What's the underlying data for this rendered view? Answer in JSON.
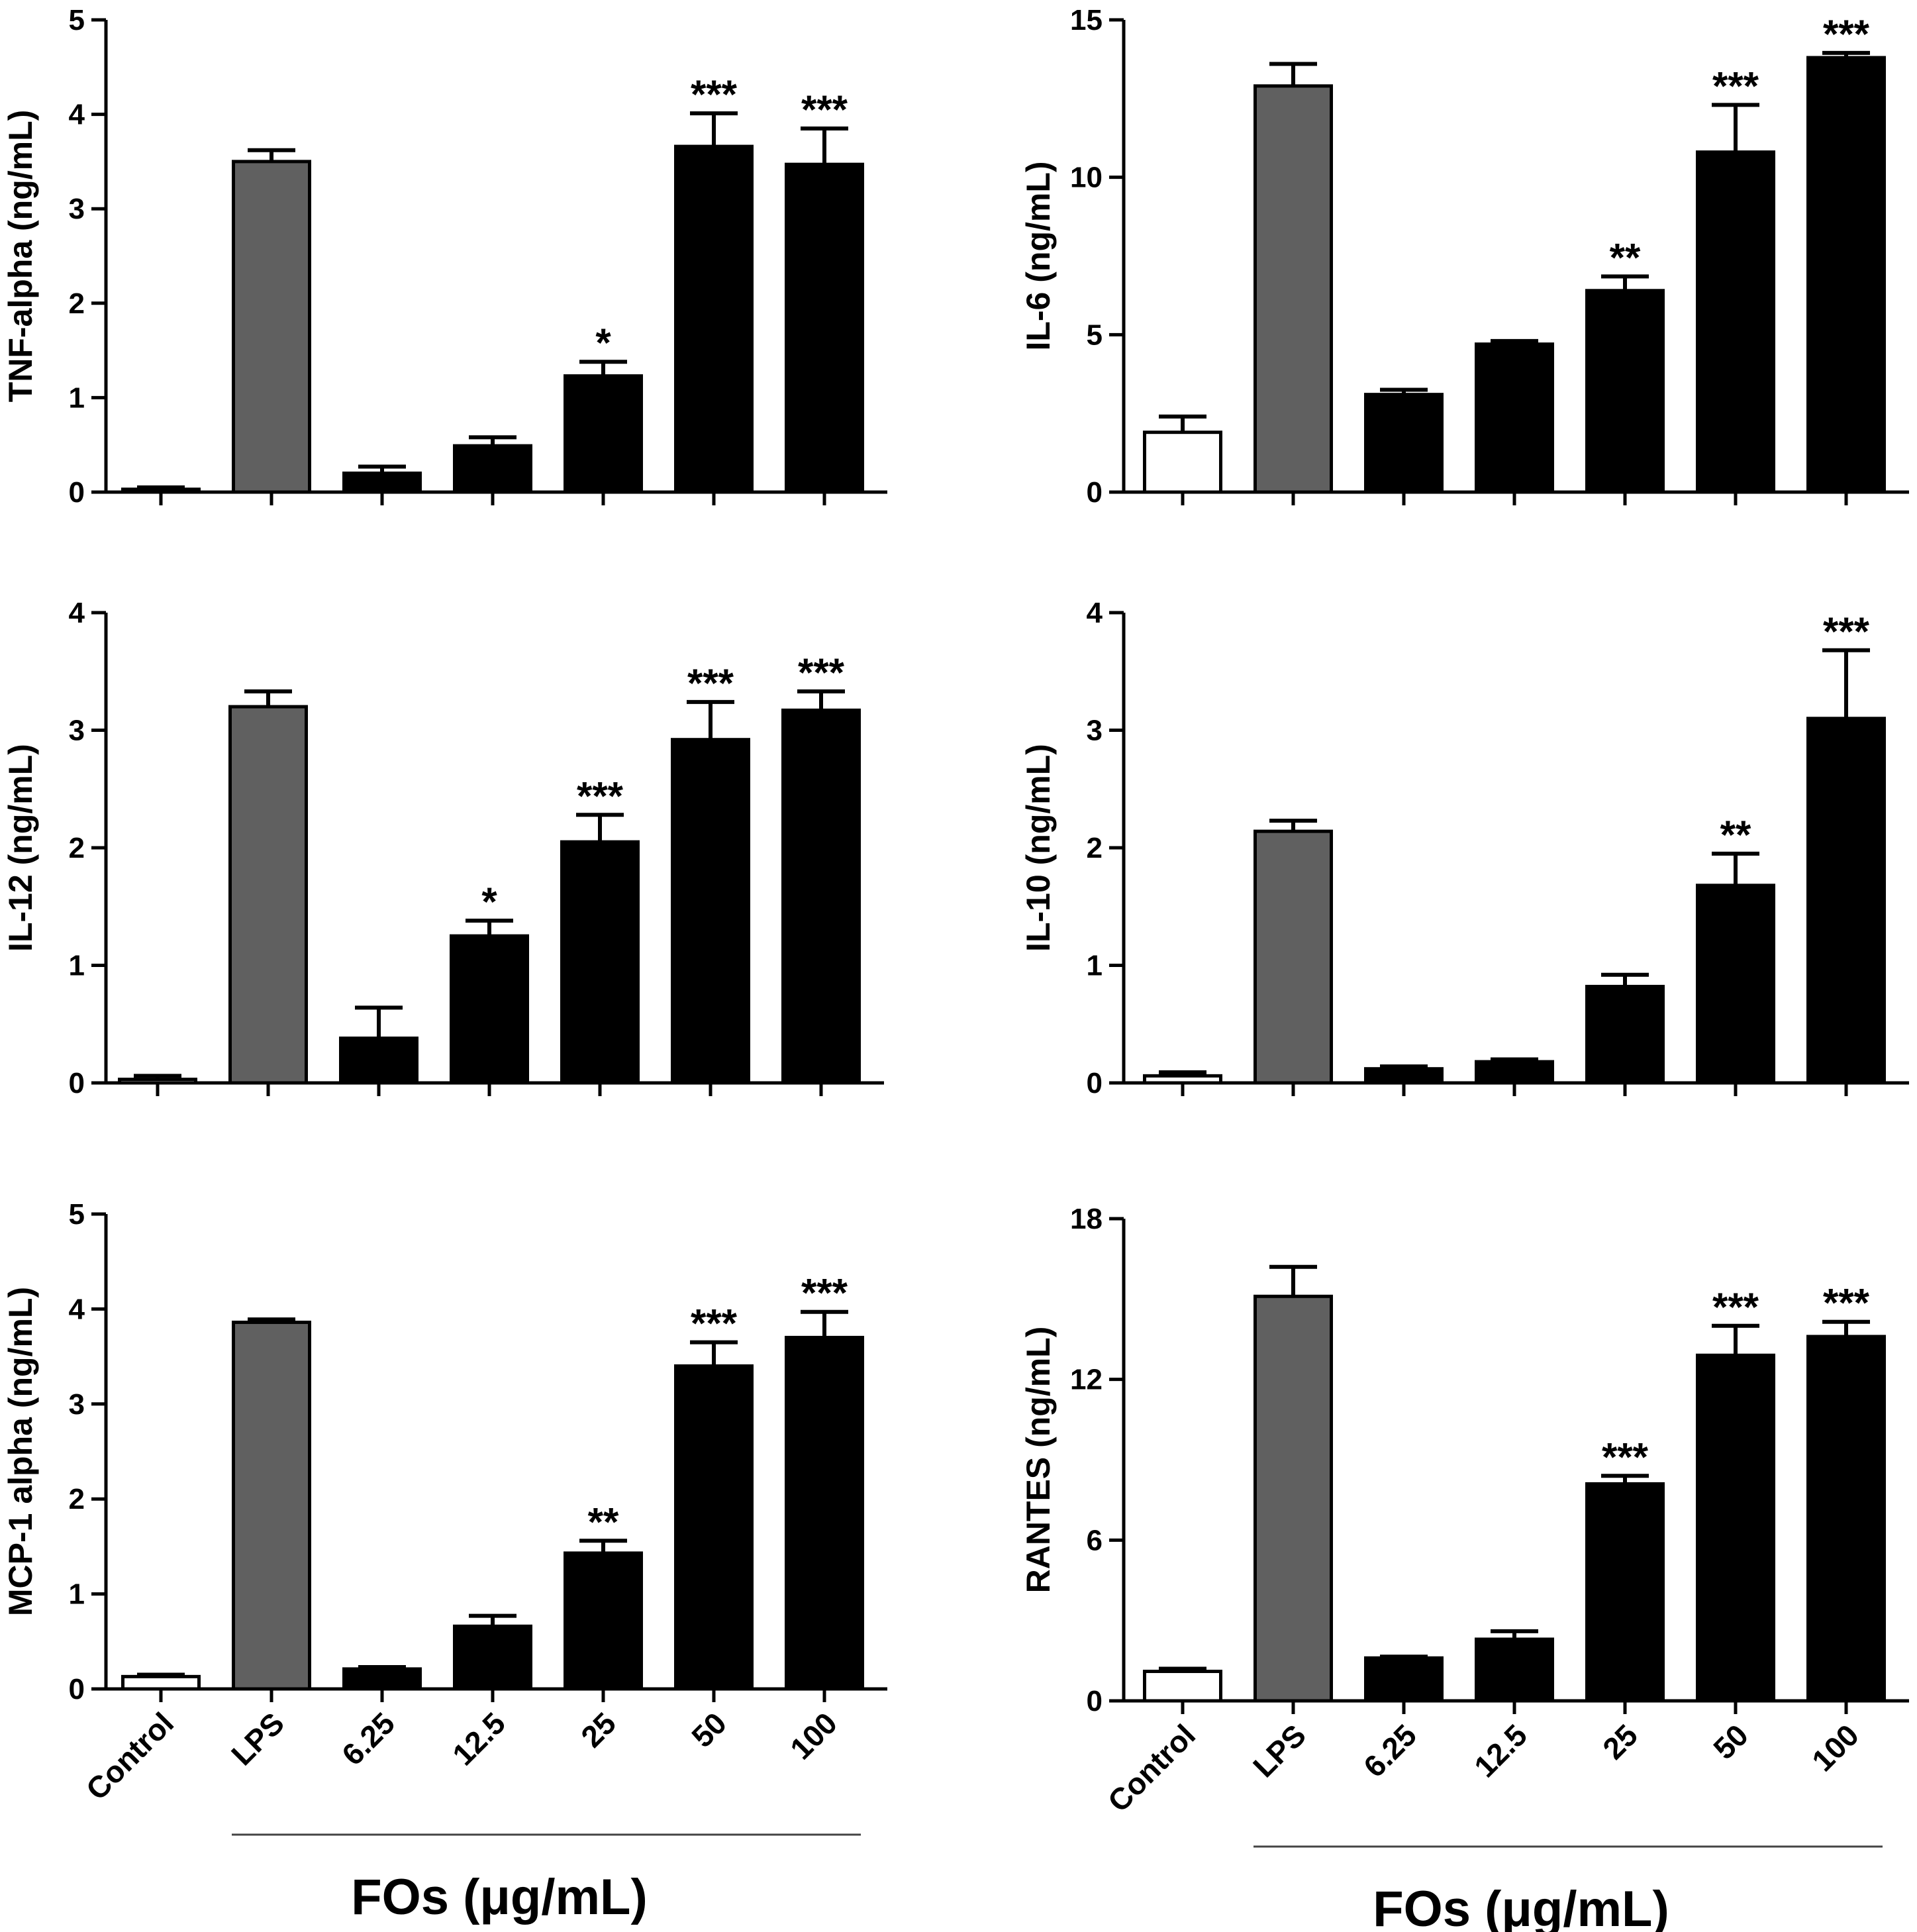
{
  "chart_data": [
    {
      "type": "bar",
      "ylabel": "TNF-alpha (ng/mL)",
      "ylim": [
        0,
        5
      ],
      "yticks": [
        0,
        1,
        2,
        3,
        4,
        5
      ],
      "categories": [
        "Control",
        "LPS",
        "6.25",
        "12.5",
        "25",
        "50",
        "100"
      ],
      "values": [
        0.03,
        3.5,
        0.2,
        0.49,
        1.23,
        3.66,
        3.47
      ],
      "errors": [
        0.02,
        0.12,
        0.07,
        0.09,
        0.15,
        0.35,
        0.38
      ],
      "significance": [
        "",
        "",
        "",
        "",
        "*",
        "***",
        "***"
      ],
      "bar_colors": [
        "#ffffff",
        "#606060",
        "#000000",
        "#000000",
        "#000000",
        "#000000",
        "#000000"
      ],
      "show_category_labels": false
    },
    {
      "type": "bar",
      "ylabel": "IL-6 (ng/mL)",
      "ylim": [
        0,
        15
      ],
      "yticks": [
        0,
        5,
        10,
        15
      ],
      "categories": [
        "Control",
        "LPS",
        "6.25",
        "12.5",
        "25",
        "50",
        "100"
      ],
      "values": [
        1.9,
        12.9,
        3.1,
        4.7,
        6.4,
        10.8,
        13.8
      ],
      "errors": [
        0.5,
        0.7,
        0.15,
        0.1,
        0.45,
        1.5,
        0.15
      ],
      "significance": [
        "",
        "",
        "",
        "",
        "**",
        "***",
        "***"
      ],
      "bar_colors": [
        "#ffffff",
        "#606060",
        "#000000",
        "#000000",
        "#000000",
        "#000000",
        "#000000"
      ],
      "show_category_labels": false
    },
    {
      "type": "bar",
      "ylabel": "IL-12 (ng/mL)",
      "ylim": [
        0,
        4
      ],
      "yticks": [
        0,
        1,
        2,
        3,
        4
      ],
      "categories": [
        "Control",
        "LPS",
        "6.25",
        "12.5",
        "25",
        "50",
        "100"
      ],
      "values": [
        0.03,
        3.2,
        0.38,
        1.25,
        2.05,
        2.92,
        3.17
      ],
      "errors": [
        0.03,
        0.13,
        0.26,
        0.13,
        0.23,
        0.32,
        0.16
      ],
      "significance": [
        "",
        "",
        "",
        "*",
        "***",
        "***",
        "***"
      ],
      "bar_colors": [
        "#ffffff",
        "#606060",
        "#000000",
        "#000000",
        "#000000",
        "#000000",
        "#000000"
      ],
      "show_category_labels": false
    },
    {
      "type": "bar",
      "ylabel": "IL-10 (ng/mL)",
      "ylim": [
        0,
        4
      ],
      "yticks": [
        0,
        1,
        2,
        3,
        4
      ],
      "categories": [
        "Control",
        "LPS",
        "6.25",
        "12.5",
        "25",
        "50",
        "100"
      ],
      "values": [
        0.06,
        2.14,
        0.12,
        0.18,
        0.82,
        1.68,
        3.1
      ],
      "errors": [
        0.03,
        0.09,
        0.02,
        0.02,
        0.1,
        0.27,
        0.58
      ],
      "significance": [
        "",
        "",
        "",
        "",
        "",
        "**",
        "***"
      ],
      "bar_colors": [
        "#ffffff",
        "#606060",
        "#000000",
        "#000000",
        "#000000",
        "#000000",
        "#000000"
      ],
      "show_category_labels": false
    },
    {
      "type": "bar",
      "ylabel": "MCP-1 alpha (ng/mL)",
      "ylim": [
        0,
        5
      ],
      "yticks": [
        0,
        1,
        2,
        3,
        4,
        5
      ],
      "categories": [
        "Control",
        "LPS",
        "6.25",
        "12.5",
        "25",
        "50",
        "100"
      ],
      "values": [
        0.13,
        3.86,
        0.21,
        0.66,
        1.43,
        3.4,
        3.7
      ],
      "errors": [
        0.02,
        0.03,
        0.02,
        0.11,
        0.13,
        0.25,
        0.27
      ],
      "significance": [
        "",
        "",
        "",
        "",
        "**",
        "***",
        "***"
      ],
      "bar_colors": [
        "#ffffff",
        "#606060",
        "#000000",
        "#000000",
        "#000000",
        "#000000",
        "#000000"
      ],
      "show_category_labels": true,
      "group_line": true,
      "xlabel": "FOs (μg/mL)"
    },
    {
      "type": "bar",
      "ylabel": "RANTES (ng/mL)",
      "ylim": [
        0,
        18
      ],
      "yticks": [
        0,
        6,
        12,
        18
      ],
      "categories": [
        "Control",
        "LPS",
        "6.25",
        "12.5",
        "25",
        "50",
        "100"
      ],
      "values": [
        1.1,
        15.1,
        1.6,
        2.3,
        8.1,
        12.9,
        13.6
      ],
      "errors": [
        0.1,
        1.1,
        0.05,
        0.3,
        0.3,
        1.1,
        0.55
      ],
      "significance": [
        "",
        "",
        "",
        "",
        "***",
        "***",
        "***"
      ],
      "bar_colors": [
        "#ffffff",
        "#606060",
        "#000000",
        "#000000",
        "#000000",
        "#000000",
        "#000000"
      ],
      "show_category_labels": true,
      "group_line": true,
      "xlabel": "FOs (μg/mL)"
    }
  ]
}
